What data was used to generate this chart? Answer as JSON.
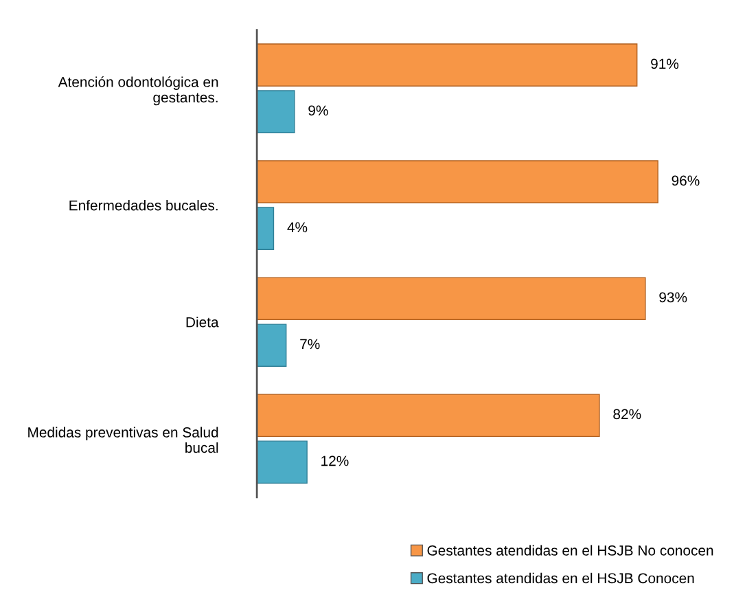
{
  "chart_data": {
    "type": "bar",
    "orientation": "horizontal",
    "categories": [
      "Atención odontológica en gestantes.",
      "Enfermedades bucales.",
      "Dieta",
      "Medidas preventivas en Salud bucal"
    ],
    "series": [
      {
        "name": "Gestantes atendidas en el HSJB No conocen",
        "color": "#f79646",
        "values": [
          91,
          96,
          93,
          82
        ],
        "value_labels": [
          "91%",
          "96%",
          "93%",
          "82%"
        ]
      },
      {
        "name": "Gestantes atendidas en el HSJB Conocen",
        "color": "#4bacc6",
        "values": [
          9,
          4,
          7,
          12
        ],
        "value_labels": [
          "9%",
          "4%",
          "7%",
          "12%"
        ]
      }
    ],
    "legend": "bottom right",
    "tick_labels": "y",
    "grid": false
  }
}
